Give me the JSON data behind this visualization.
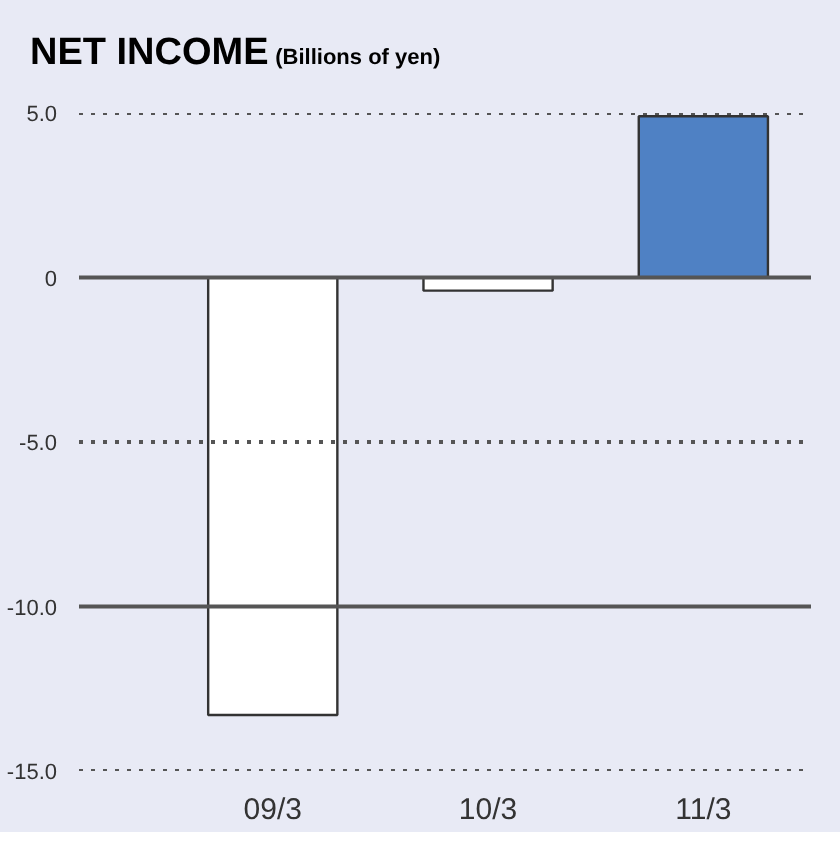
{
  "chart_data": {
    "type": "bar",
    "title": "NET INCOME",
    "subtitle": "(Billions of yen)",
    "categories": [
      "09/3",
      "10/3",
      "11/3"
    ],
    "values": [
      -13.3,
      -0.4,
      4.9
    ],
    "colors": [
      "#ffffff",
      "#ffffff",
      "#4f81c4"
    ],
    "ylim": [
      -15,
      5
    ],
    "yticks": [
      {
        "value": 5,
        "label": "5.0"
      },
      0,
      {
        "value": -5,
        "label": "-5.0"
      },
      {
        "value": -10,
        "label": "-10.0"
      },
      {
        "value": -15,
        "label": "-15.0"
      }
    ],
    "ref_lines": [
      {
        "axis": "y",
        "value": 5,
        "label": null,
        "line_style": "dotted"
      },
      {
        "axis": "y",
        "value": 0,
        "label": null
      },
      {
        "axis": "y",
        "value": -5,
        "label": null,
        "line_style": "dotted"
      },
      {
        "axis": "y",
        "value": -10,
        "label": null
      },
      {
        "axis": "y",
        "value": -15,
        "label": null,
        "line_style": "dotted"
      }
    ]
  }
}
